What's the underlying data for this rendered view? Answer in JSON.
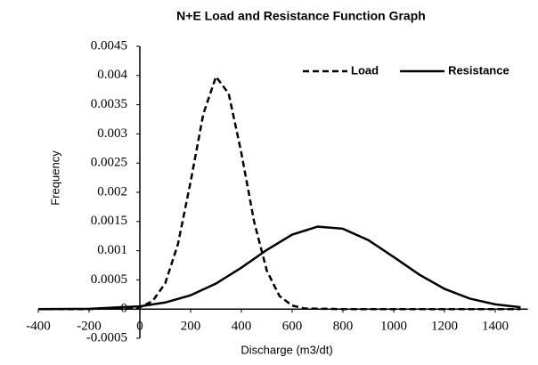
{
  "chart_data": {
    "type": "line",
    "title": "N+E Load and Resistance Function Graph",
    "x_label": "Discharge (m3/dt)",
    "y_label": "Frequency",
    "xlim": [
      -400,
      1500
    ],
    "xticks": [
      -400,
      -200,
      0,
      200,
      400,
      600,
      800,
      1000,
      1200,
      1400
    ],
    "ylim": [
      -0.0005,
      0.0045
    ],
    "yticks": [
      -0.0005,
      0,
      0.0005,
      0.001,
      0.0015,
      0.002,
      0.0025,
      0.003,
      0.0035,
      0.004,
      0.0045
    ],
    "grid": false,
    "legend": "top-right",
    "series": [
      {
        "name": "Load",
        "color": "#000000",
        "style": "dashed",
        "x": [
          -400,
          -200,
          0,
          50,
          100,
          150,
          200,
          250,
          300,
          350,
          400,
          450,
          500,
          550,
          600,
          650,
          800,
          1000,
          1200,
          1500
        ],
        "values": [
          0,
          0,
          3e-05,
          0.000136,
          0.000441,
          0.00111,
          0.00218,
          0.00334,
          0.00398,
          0.00369,
          0.00267,
          0.0015,
          0.00066,
          0.000224,
          6e-05,
          1e-05,
          0,
          0,
          0,
          0
        ]
      },
      {
        "name": "Resistance",
        "color": "#000000",
        "style": "solid",
        "x": [
          -400,
          -200,
          0,
          100,
          200,
          300,
          400,
          500,
          600,
          700,
          800,
          900,
          1000,
          1100,
          1200,
          1300,
          1400,
          1500
        ],
        "values": [
          0,
          5.7e-06,
          4.74e-05,
          0.000113,
          0.000237,
          0.000437,
          0.000709,
          0.001013,
          0.001275,
          0.001412,
          0.001376,
          0.001181,
          0.000892,
          0.000593,
          0.000347,
          0.000179,
          8.1e-05,
          3.2e-05
        ]
      }
    ]
  }
}
